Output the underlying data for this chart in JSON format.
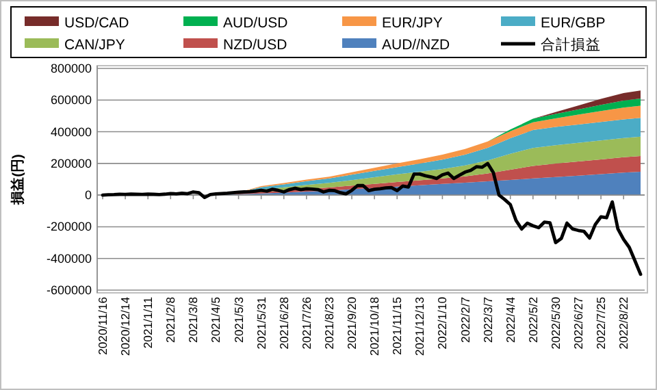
{
  "chart_data": {
    "type": "area",
    "stacked": true,
    "ylabel": "損益(円)",
    "legend": "top",
    "grid": "y",
    "xlim": [
      "2020-11-16",
      "2022-09-12"
    ],
    "xticks": [
      {
        "value": "2020-11-16",
        "label": "2020/11/16"
      },
      {
        "value": "2020-12-14",
        "label": "2020/12/14"
      },
      {
        "value": "2021-01-11",
        "label": "2021/1/11"
      },
      {
        "value": "2021-02-08",
        "label": "2021/2/8"
      },
      {
        "value": "2021-03-08",
        "label": "2021/3/8"
      },
      {
        "value": "2021-04-05",
        "label": "2021/4/5"
      },
      {
        "value": "2021-05-03",
        "label": "2021/5/3"
      },
      {
        "value": "2021-05-31",
        "label": "2021/5/31"
      },
      {
        "value": "2021-06-28",
        "label": "2021/6/28"
      },
      {
        "value": "2021-07-26",
        "label": "2021/7/26"
      },
      {
        "value": "2021-08-23",
        "label": "2021/8/23"
      },
      {
        "value": "2021-09-20",
        "label": "2021/9/20"
      },
      {
        "value": "2021-10-18",
        "label": "2021/10/18"
      },
      {
        "value": "2021-11-15",
        "label": "2021/11/15"
      },
      {
        "value": "2021-12-13",
        "label": "2021/12/13"
      },
      {
        "value": "2022-01-10",
        "label": "2022/1/10"
      },
      {
        "value": "2022-02-07",
        "label": "2022/2/7"
      },
      {
        "value": "2022-03-07",
        "label": "2022/3/7"
      },
      {
        "value": "2022-04-04",
        "label": "2022/4/4"
      },
      {
        "value": "2022-05-02",
        "label": "2022/5/2"
      },
      {
        "value": "2022-05-30",
        "label": "2022/5/30"
      },
      {
        "value": "2022-06-27",
        "label": "2022/6/27"
      },
      {
        "value": "2022-07-25",
        "label": "2022/7/25"
      },
      {
        "value": "2022-08-22",
        "label": "2022/8/22"
      }
    ],
    "ylim": [
      -600000,
      800000
    ],
    "yticks": [
      -600000,
      -400000,
      -200000,
      0,
      200000,
      400000,
      600000,
      800000
    ],
    "x": [
      "2020-11-16",
      "2020-12-14",
      "2021-01-11",
      "2021-02-08",
      "2021-03-08",
      "2021-04-05",
      "2021-05-03",
      "2021-05-31",
      "2021-06-28",
      "2021-07-26",
      "2021-08-23",
      "2021-09-20",
      "2021-10-18",
      "2021-11-15",
      "2021-12-13",
      "2022-01-10",
      "2022-02-07",
      "2022-03-07",
      "2022-04-04",
      "2022-05-02",
      "2022-05-30",
      "2022-06-27",
      "2022-07-25",
      "2022-08-22",
      "2022-09-12"
    ],
    "series": [
      {
        "name": "AUD//NZD",
        "color": "#4f81bd",
        "values": [
          0,
          0,
          0,
          0,
          0,
          3000,
          6000,
          10000,
          16000,
          22000,
          28000,
          37000,
          45000,
          54000,
          62000,
          71000,
          78000,
          87000,
          96000,
          105000,
          114000,
          123000,
          132000,
          142000,
          148000
        ]
      },
      {
        "name": "NZD/USD",
        "color": "#c0504d",
        "values": [
          0,
          0,
          0,
          0,
          0,
          0,
          4000,
          10000,
          13000,
          17000,
          20000,
          23000,
          26000,
          29000,
          31000,
          34000,
          40000,
          50000,
          65000,
          79000,
          85000,
          89000,
          93000,
          97000,
          99000
        ]
      },
      {
        "name": "CAN/JPY",
        "color": "#9bbb59",
        "values": [
          0,
          0,
          0,
          0,
          0,
          0,
          7000,
          15000,
          20000,
          25000,
          29000,
          35000,
          42000,
          48000,
          54000,
          60000,
          70000,
          82000,
          100000,
          114000,
          116000,
          118000,
          120000,
          121000,
          122000
        ]
      },
      {
        "name": "EUR/GBP",
        "color": "#4bacc6",
        "values": [
          0,
          0,
          0,
          0,
          0,
          0,
          0,
          15000,
          19000,
          24000,
          28000,
          34000,
          40000,
          46000,
          52000,
          59000,
          68000,
          80000,
          98000,
          113000,
          115000,
          116000,
          117000,
          118000,
          119000
        ]
      },
      {
        "name": "EUR/JPY",
        "color": "#f79646",
        "values": [
          0,
          0,
          0,
          0,
          0,
          0,
          0,
          7000,
          8000,
          10000,
          11000,
          15000,
          19000,
          23000,
          27000,
          31000,
          35000,
          40000,
          45000,
          49000,
          55000,
          62000,
          69000,
          75000,
          77000
        ]
      },
      {
        "name": "AUD/USD",
        "color": "#00b050",
        "values": [
          0,
          0,
          0,
          0,
          0,
          0,
          0,
          0,
          0,
          0,
          0,
          0,
          0,
          0,
          0,
          0,
          0,
          0,
          10000,
          22000,
          28000,
          33000,
          39000,
          44000,
          45000
        ]
      },
      {
        "name": "USD/CAD",
        "color": "#772c2a",
        "values": [
          0,
          0,
          0,
          0,
          0,
          0,
          0,
          0,
          0,
          0,
          0,
          0,
          0,
          0,
          0,
          0,
          0,
          0,
          0,
          0,
          12000,
          25000,
          38000,
          48000,
          51000
        ]
      },
      {
        "name": "合計損益",
        "type": "line",
        "color": "#000000",
        "x": [
          "2020-11-16",
          "2020-11-23",
          "2020-11-30",
          "2020-12-07",
          "2020-12-14",
          "2020-12-21",
          "2020-12-28",
          "2021-01-04",
          "2021-01-11",
          "2021-01-18",
          "2021-01-25",
          "2021-02-01",
          "2021-02-08",
          "2021-02-15",
          "2021-02-22",
          "2021-03-01",
          "2021-03-08",
          "2021-03-15",
          "2021-03-22",
          "2021-03-29",
          "2021-04-05",
          "2021-04-12",
          "2021-04-19",
          "2021-04-26",
          "2021-05-03",
          "2021-05-10",
          "2021-05-17",
          "2021-05-24",
          "2021-05-31",
          "2021-06-07",
          "2021-06-14",
          "2021-06-21",
          "2021-06-28",
          "2021-07-05",
          "2021-07-12",
          "2021-07-19",
          "2021-07-26",
          "2021-08-02",
          "2021-08-09",
          "2021-08-16",
          "2021-08-23",
          "2021-08-30",
          "2021-09-06",
          "2021-09-13",
          "2021-09-20",
          "2021-09-27",
          "2021-10-04",
          "2021-10-11",
          "2021-10-18",
          "2021-10-25",
          "2021-11-01",
          "2021-11-08",
          "2021-11-15",
          "2021-11-22",
          "2021-11-29",
          "2021-12-06",
          "2021-12-13",
          "2021-12-20",
          "2021-12-27",
          "2022-01-03",
          "2022-01-10",
          "2022-01-17",
          "2022-01-24",
          "2022-01-31",
          "2022-02-07",
          "2022-02-14",
          "2022-02-21",
          "2022-02-28",
          "2022-03-07",
          "2022-03-14",
          "2022-03-21",
          "2022-03-28",
          "2022-04-04",
          "2022-04-11",
          "2022-04-18",
          "2022-04-25",
          "2022-05-02",
          "2022-05-09",
          "2022-05-16",
          "2022-05-23",
          "2022-05-30",
          "2022-06-06",
          "2022-06-13",
          "2022-06-20",
          "2022-06-27",
          "2022-07-04",
          "2022-07-11",
          "2022-07-18",
          "2022-07-25",
          "2022-08-01",
          "2022-08-08",
          "2022-08-15",
          "2022-08-22",
          "2022-08-29",
          "2022-09-05",
          "2022-09-12"
        ],
        "values": [
          0,
          2000,
          3000,
          5000,
          4000,
          6000,
          5000,
          4000,
          6000,
          5000,
          3000,
          6000,
          10000,
          8000,
          12000,
          9000,
          20000,
          15000,
          -15000,
          3000,
          8000,
          10000,
          12000,
          15000,
          18000,
          20000,
          22000,
          25000,
          30000,
          25000,
          37000,
          30000,
          20000,
          35000,
          43000,
          35000,
          40000,
          38000,
          35000,
          20000,
          30000,
          28000,
          15000,
          8000,
          30000,
          60000,
          60000,
          28000,
          37000,
          40000,
          45000,
          48000,
          28000,
          57000,
          51000,
          133000,
          133000,
          122000,
          115000,
          105000,
          128000,
          139000,
          105000,
          125000,
          145000,
          156000,
          179000,
          176000,
          199000,
          142000,
          0,
          -28000,
          -60000,
          -160000,
          -214000,
          -177000,
          -194000,
          -206000,
          -171000,
          -175000,
          -300000,
          -274000,
          -177000,
          -214000,
          -223000,
          -229000,
          -271000,
          -186000,
          -137000,
          -143000,
          -43000,
          -214000,
          -280000,
          -330000,
          -414000,
          -500000
        ]
      }
    ]
  }
}
